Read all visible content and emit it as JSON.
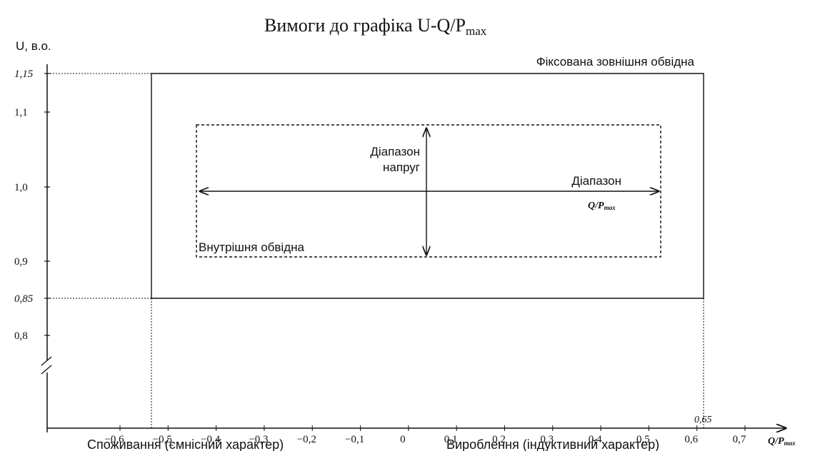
{
  "title": {
    "text": "Вимоги до графіка U-Q/P",
    "sub": "max"
  },
  "y_axis": {
    "label": "U, в.о.",
    "ticks": [
      "1,15",
      "1,1",
      "1,0",
      "0,9",
      "0,85",
      "0,8"
    ]
  },
  "x_axis": {
    "ticks": [
      "−0,6",
      "−0,5",
      "−0,4",
      "−0,3",
      "−0,2",
      "−0,1",
      "0",
      "0,1",
      "0,2",
      "0,3",
      "0,4",
      "0,5",
      "0,6",
      "0,7"
    ],
    "extra_tick": "0,65",
    "label": "Q/P",
    "label_sub": "max"
  },
  "annotations": {
    "outer": "Фіксована зовнішня обвідна",
    "inner": "Внутрішня обвідна",
    "voltage_range": [
      "Діапазон",
      "напруг"
    ],
    "q_range": "Діапазон",
    "q_range_unit": "Q/P",
    "q_range_unit_sub": "max"
  },
  "footer": {
    "left": "Споживання (ємнісний характер)",
    "right": "Вироблення (індуктивний характер)"
  }
}
